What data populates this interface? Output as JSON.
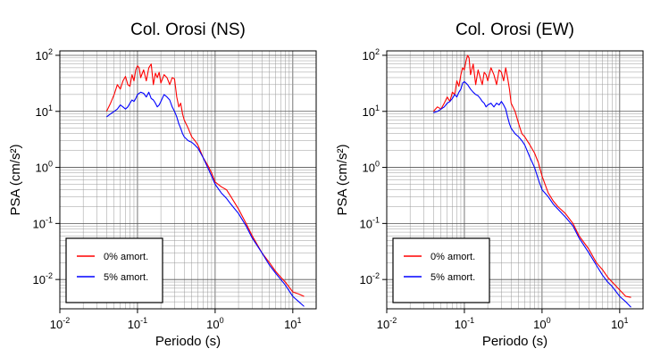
{
  "chart_data": [
    {
      "type": "line",
      "title": "Col. Orosi (NS)",
      "xlabel": "Periodo (s)",
      "ylabel": "PSA (cm/s²)",
      "xscale": "log",
      "yscale": "log",
      "xlim": [
        0.01,
        20
      ],
      "ylim": [
        0.003,
        120
      ],
      "grid": true,
      "legend": "bottom-left",
      "x_ticks": [
        "10^-2",
        "10^-1",
        "10^0",
        "10^1"
      ],
      "y_ticks": [
        "10^-2",
        "10^-1",
        "10^0",
        "10^1",
        "10^2"
      ],
      "series": [
        {
          "name": "0% amort.",
          "color": "#ff0000",
          "x": [
            0.04,
            0.045,
            0.05,
            0.055,
            0.06,
            0.065,
            0.07,
            0.075,
            0.08,
            0.085,
            0.09,
            0.095,
            0.1,
            0.105,
            0.11,
            0.12,
            0.13,
            0.14,
            0.15,
            0.16,
            0.17,
            0.18,
            0.19,
            0.2,
            0.22,
            0.24,
            0.26,
            0.28,
            0.3,
            0.32,
            0.34,
            0.36,
            0.38,
            0.4,
            0.45,
            0.5,
            0.55,
            0.6,
            0.7,
            0.8,
            0.9,
            1.0,
            1.2,
            1.4,
            1.6,
            2.0,
            2.5,
            3.0,
            4.0,
            5.0,
            6.0,
            7.0,
            8.0,
            10.0,
            12.0,
            14.0
          ],
          "y": [
            10,
            14,
            20,
            30,
            25,
            35,
            42,
            30,
            28,
            45,
            35,
            55,
            65,
            60,
            40,
            55,
            35,
            60,
            70,
            30,
            48,
            40,
            50,
            32,
            45,
            40,
            30,
            40,
            38,
            18,
            12,
            14,
            9,
            7,
            5,
            3.5,
            3,
            2.5,
            1.5,
            1.1,
            0.8,
            0.55,
            0.45,
            0.4,
            0.3,
            0.18,
            0.1,
            0.06,
            0.03,
            0.02,
            0.014,
            0.011,
            0.009,
            0.006,
            0.0055,
            0.005
          ]
        },
        {
          "name": "5% amort.",
          "color": "#0000ff",
          "x": [
            0.04,
            0.045,
            0.05,
            0.055,
            0.06,
            0.065,
            0.07,
            0.075,
            0.08,
            0.085,
            0.09,
            0.095,
            0.1,
            0.11,
            0.12,
            0.13,
            0.14,
            0.15,
            0.16,
            0.17,
            0.18,
            0.19,
            0.2,
            0.22,
            0.24,
            0.26,
            0.28,
            0.3,
            0.32,
            0.34,
            0.36,
            0.38,
            0.4,
            0.45,
            0.5,
            0.55,
            0.6,
            0.7,
            0.8,
            0.9,
            1.0,
            1.2,
            1.4,
            1.6,
            2.0,
            2.5,
            3.0,
            4.0,
            5.0,
            6.0,
            7.0,
            8.0,
            10.0,
            12.0,
            14.0
          ],
          "y": [
            8,
            9,
            10,
            11,
            13,
            12,
            11,
            12,
            14,
            16,
            15,
            17,
            20,
            22,
            21,
            18,
            22,
            17,
            16,
            14,
            12,
            13,
            15,
            20,
            18,
            16,
            12,
            10,
            8,
            6,
            5,
            4,
            3.5,
            3,
            2.8,
            2.5,
            2.2,
            1.5,
            1.0,
            0.7,
            0.5,
            0.35,
            0.28,
            0.22,
            0.15,
            0.09,
            0.055,
            0.03,
            0.018,
            0.013,
            0.01,
            0.008,
            0.005,
            0.004,
            0.0033
          ]
        }
      ]
    },
    {
      "type": "line",
      "title": "Col. Orosi (EW)",
      "xlabel": "Periodo (s)",
      "ylabel": "PSA (cm/s²)",
      "xscale": "log",
      "yscale": "log",
      "xlim": [
        0.01,
        20
      ],
      "ylim": [
        0.003,
        120
      ],
      "grid": true,
      "legend": "bottom-left",
      "x_ticks": [
        "10^-2",
        "10^-1",
        "10^0",
        "10^1"
      ],
      "y_ticks": [
        "10^-2",
        "10^-1",
        "10^0",
        "10^1",
        "10^2"
      ],
      "series": [
        {
          "name": "0% amort.",
          "color": "#ff0000",
          "x": [
            0.04,
            0.045,
            0.05,
            0.055,
            0.06,
            0.065,
            0.07,
            0.075,
            0.08,
            0.085,
            0.09,
            0.095,
            0.1,
            0.105,
            0.11,
            0.115,
            0.12,
            0.13,
            0.14,
            0.15,
            0.16,
            0.17,
            0.18,
            0.19,
            0.2,
            0.22,
            0.24,
            0.26,
            0.28,
            0.3,
            0.32,
            0.34,
            0.36,
            0.38,
            0.4,
            0.45,
            0.5,
            0.55,
            0.6,
            0.7,
            0.8,
            0.9,
            1.0,
            1.2,
            1.4,
            1.6,
            2.0,
            2.5,
            3.0,
            4.0,
            5.0,
            6.0,
            7.0,
            8.0,
            10.0,
            12.0,
            14.0
          ],
          "y": [
            10,
            12,
            11,
            14,
            18,
            15,
            22,
            20,
            35,
            28,
            45,
            60,
            55,
            80,
            100,
            90,
            45,
            70,
            30,
            55,
            40,
            30,
            50,
            45,
            35,
            60,
            45,
            30,
            55,
            50,
            35,
            60,
            40,
            25,
            14,
            10,
            6,
            4,
            3.5,
            2.5,
            1.8,
            1.2,
            0.7,
            0.35,
            0.25,
            0.2,
            0.15,
            0.1,
            0.06,
            0.035,
            0.02,
            0.015,
            0.011,
            0.009,
            0.0065,
            0.005,
            0.0048
          ]
        },
        {
          "name": "5% amort.",
          "color": "#0000ff",
          "x": [
            0.04,
            0.045,
            0.05,
            0.055,
            0.06,
            0.065,
            0.07,
            0.075,
            0.08,
            0.085,
            0.09,
            0.095,
            0.1,
            0.11,
            0.12,
            0.13,
            0.14,
            0.15,
            0.16,
            0.17,
            0.18,
            0.19,
            0.2,
            0.22,
            0.24,
            0.26,
            0.28,
            0.3,
            0.32,
            0.34,
            0.36,
            0.38,
            0.4,
            0.45,
            0.5,
            0.55,
            0.6,
            0.7,
            0.8,
            0.9,
            1.0,
            1.2,
            1.4,
            1.6,
            2.0,
            2.5,
            3.0,
            4.0,
            5.0,
            6.0,
            7.0,
            8.0,
            10.0,
            12.0,
            14.0
          ],
          "y": [
            9.5,
            10,
            11,
            12,
            14,
            15,
            17,
            20,
            18,
            22,
            25,
            32,
            34,
            30,
            25,
            22,
            20,
            19,
            17,
            15,
            14,
            12,
            13,
            14,
            12,
            14,
            13,
            15,
            13,
            11,
            8,
            6,
            5,
            4,
            3.5,
            3,
            2.5,
            1.5,
            1.0,
            0.6,
            0.4,
            0.3,
            0.22,
            0.18,
            0.13,
            0.09,
            0.055,
            0.03,
            0.018,
            0.012,
            0.009,
            0.0075,
            0.005,
            0.004,
            0.0032
          ]
        }
      ]
    }
  ]
}
